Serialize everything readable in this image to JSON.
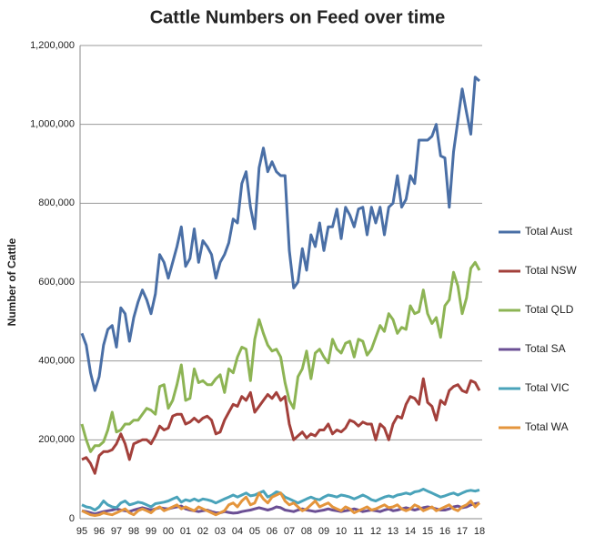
{
  "chart_data": {
    "type": "line",
    "title": "Cattle Numbers on Feed over time",
    "y_label": "Number of Cattle",
    "categories": [
      "95",
      null,
      null,
      null,
      "96",
      null,
      null,
      null,
      "97",
      null,
      null,
      null,
      "98",
      null,
      null,
      null,
      "99",
      null,
      null,
      null,
      "00",
      null,
      null,
      null,
      "01",
      null,
      null,
      null,
      "02",
      null,
      null,
      null,
      "03",
      null,
      null,
      null,
      "04",
      null,
      null,
      null,
      "05",
      null,
      null,
      null,
      "06",
      null,
      null,
      null,
      "07",
      null,
      null,
      null,
      "08",
      null,
      null,
      null,
      "09",
      null,
      null,
      null,
      "10",
      null,
      null,
      null,
      "11",
      null,
      null,
      null,
      "12",
      null,
      null,
      null,
      "13",
      null,
      null,
      null,
      "14",
      null,
      null,
      null,
      "15",
      null,
      null,
      null,
      "16",
      null,
      null,
      null,
      "17",
      null,
      null,
      null,
      "18"
    ],
    "ylim": [
      0,
      1200000
    ],
    "yticks": [
      0,
      {
        "value": 200000,
        "label": "200,000"
      },
      {
        "value": 400000,
        "label": "400,000"
      },
      {
        "value": 600000,
        "label": "600,000"
      },
      {
        "value": 800000,
        "label": "800,000"
      },
      {
        "value": 1000000,
        "label": "1,000,000"
      },
      {
        "value": 1200000,
        "label": "1,200,000"
      }
    ],
    "grid": true,
    "legend": "right",
    "series": [
      {
        "name": "Total Aust",
        "color": "#4a6fa6",
        "values": [
          470000,
          440000,
          370000,
          325000,
          360000,
          440000,
          480000,
          490000,
          435000,
          535000,
          520000,
          450000,
          510000,
          550000,
          580000,
          555000,
          520000,
          570000,
          670000,
          650000,
          610000,
          650000,
          690000,
          740000,
          640000,
          660000,
          735000,
          650000,
          705000,
          690000,
          670000,
          610000,
          650000,
          670000,
          700000,
          760000,
          750000,
          850000,
          880000,
          790000,
          735000,
          890000,
          940000,
          880000,
          905000,
          880000,
          870000,
          870000,
          680000,
          585000,
          600000,
          685000,
          630000,
          720000,
          690000,
          750000,
          680000,
          740000,
          740000,
          785000,
          710000,
          790000,
          770000,
          740000,
          785000,
          790000,
          720000,
          790000,
          750000,
          790000,
          720000,
          790000,
          800000,
          870000,
          790000,
          810000,
          870000,
          850000,
          960000,
          960000,
          960000,
          970000,
          1000000,
          920000,
          915000,
          790000,
          930000,
          1010000,
          1090000,
          1030000,
          975000,
          1120000,
          1110000
        ]
      },
      {
        "name": "Total NSW",
        "color": "#a3403b",
        "values": [
          150000,
          155000,
          140000,
          115000,
          160000,
          170000,
          170000,
          175000,
          190000,
          215000,
          190000,
          150000,
          190000,
          195000,
          200000,
          200000,
          190000,
          210000,
          235000,
          225000,
          230000,
          260000,
          265000,
          265000,
          240000,
          245000,
          255000,
          245000,
          255000,
          260000,
          250000,
          215000,
          220000,
          250000,
          270000,
          290000,
          285000,
          310000,
          300000,
          320000,
          270000,
          285000,
          300000,
          315000,
          305000,
          320000,
          300000,
          310000,
          240000,
          200000,
          210000,
          220000,
          205000,
          215000,
          210000,
          225000,
          225000,
          240000,
          215000,
          225000,
          220000,
          230000,
          250000,
          245000,
          235000,
          245000,
          240000,
          240000,
          200000,
          240000,
          230000,
          200000,
          240000,
          260000,
          255000,
          290000,
          310000,
          305000,
          290000,
          355000,
          295000,
          285000,
          250000,
          300000,
          290000,
          325000,
          335000,
          340000,
          325000,
          320000,
          350000,
          345000,
          325000
        ]
      },
      {
        "name": "Total QLD",
        "color": "#8db454",
        "values": [
          240000,
          200000,
          170000,
          185000,
          185000,
          195000,
          225000,
          270000,
          220000,
          225000,
          240000,
          240000,
          250000,
          250000,
          265000,
          280000,
          275000,
          265000,
          335000,
          340000,
          280000,
          300000,
          340000,
          390000,
          300000,
          305000,
          380000,
          345000,
          350000,
          340000,
          340000,
          355000,
          365000,
          320000,
          380000,
          370000,
          410000,
          435000,
          430000,
          350000,
          455000,
          505000,
          470000,
          440000,
          425000,
          430000,
          410000,
          345000,
          300000,
          280000,
          360000,
          380000,
          425000,
          355000,
          420000,
          430000,
          410000,
          395000,
          455000,
          430000,
          420000,
          445000,
          450000,
          410000,
          455000,
          450000,
          415000,
          430000,
          460000,
          490000,
          475000,
          520000,
          505000,
          470000,
          485000,
          480000,
          540000,
          520000,
          525000,
          580000,
          520000,
          495000,
          510000,
          460000,
          540000,
          555000,
          625000,
          590000,
          520000,
          560000,
          635000,
          650000,
          630000
        ]
      },
      {
        "name": "Total SA",
        "color": "#6b4f94",
        "values": [
          20000,
          18000,
          15000,
          12000,
          15000,
          18000,
          20000,
          22000,
          25000,
          22000,
          20000,
          18000,
          22000,
          25000,
          28000,
          25000,
          22000,
          25000,
          28000,
          26000,
          25000,
          28000,
          30000,
          32000,
          25000,
          22000,
          20000,
          18000,
          20000,
          22000,
          18000,
          15000,
          15000,
          18000,
          16000,
          14000,
          15000,
          18000,
          20000,
          22000,
          25000,
          28000,
          25000,
          22000,
          25000,
          30000,
          28000,
          22000,
          20000,
          18000,
          22000,
          25000,
          22000,
          20000,
          18000,
          20000,
          22000,
          25000,
          22000,
          20000,
          18000,
          20000,
          22000,
          25000,
          22000,
          18000,
          20000,
          22000,
          20000,
          18000,
          22000,
          25000,
          20000,
          22000,
          25000,
          28000,
          25000,
          22000,
          25000,
          28000,
          30000,
          28000,
          25000,
          22000,
          22000,
          25000,
          30000,
          32000,
          28000,
          30000,
          35000,
          38000,
          40000
        ]
      },
      {
        "name": "Total VIC",
        "color": "#4aa3ba",
        "values": [
          35000,
          30000,
          28000,
          22000,
          30000,
          45000,
          35000,
          30000,
          28000,
          40000,
          45000,
          35000,
          38000,
          42000,
          40000,
          35000,
          30000,
          38000,
          40000,
          42000,
          45000,
          50000,
          55000,
          42000,
          48000,
          45000,
          50000,
          45000,
          50000,
          48000,
          45000,
          40000,
          45000,
          50000,
          55000,
          60000,
          55000,
          60000,
          65000,
          58000,
          60000,
          65000,
          70000,
          55000,
          60000,
          68000,
          65000,
          55000,
          50000,
          45000,
          40000,
          45000,
          50000,
          55000,
          50000,
          48000,
          55000,
          60000,
          58000,
          55000,
          60000,
          58000,
          55000,
          50000,
          55000,
          60000,
          55000,
          48000,
          45000,
          50000,
          55000,
          58000,
          55000,
          60000,
          62000,
          65000,
          62000,
          68000,
          70000,
          75000,
          70000,
          65000,
          60000,
          55000,
          58000,
          62000,
          65000,
          60000,
          65000,
          70000,
          72000,
          70000,
          73000
        ]
      },
      {
        "name": "Total WA",
        "color": "#e4953c",
        "values": [
          20000,
          15000,
          10000,
          8000,
          10000,
          15000,
          12000,
          10000,
          15000,
          20000,
          25000,
          15000,
          10000,
          20000,
          25000,
          20000,
          15000,
          25000,
          30000,
          20000,
          25000,
          30000,
          35000,
          25000,
          30000,
          25000,
          20000,
          30000,
          25000,
          20000,
          15000,
          10000,
          15000,
          20000,
          35000,
          40000,
          30000,
          45000,
          55000,
          35000,
          40000,
          65000,
          50000,
          40000,
          55000,
          60000,
          65000,
          45000,
          35000,
          40000,
          30000,
          20000,
          25000,
          35000,
          45000,
          30000,
          35000,
          40000,
          30000,
          25000,
          20000,
          30000,
          25000,
          15000,
          20000,
          25000,
          30000,
          22000,
          25000,
          30000,
          35000,
          28000,
          30000,
          35000,
          25000,
          20000,
          25000,
          35000,
          30000,
          20000,
          25000,
          30000,
          20000,
          25000,
          30000,
          35000,
          25000,
          20000,
          30000,
          35000,
          45000,
          30000,
          40000
        ]
      }
    ]
  }
}
